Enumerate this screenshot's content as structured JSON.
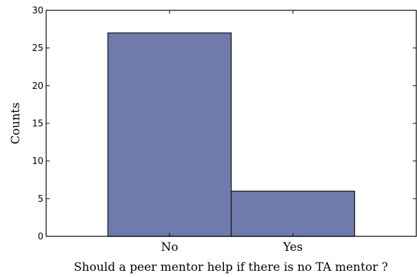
{
  "chart_data": {
    "type": "bar",
    "categories": [
      "No",
      "Yes"
    ],
    "values": [
      27,
      6
    ],
    "xlabel": "Should a peer mentor help if there is no TA mentor ?",
    "ylabel": "Counts",
    "ylim": [
      0,
      30
    ],
    "yticks": [
      0,
      5,
      10,
      15,
      20,
      25,
      30
    ],
    "grid": false,
    "bar_color": "#6f7bad",
    "edge_color": "#1a1a1a"
  }
}
